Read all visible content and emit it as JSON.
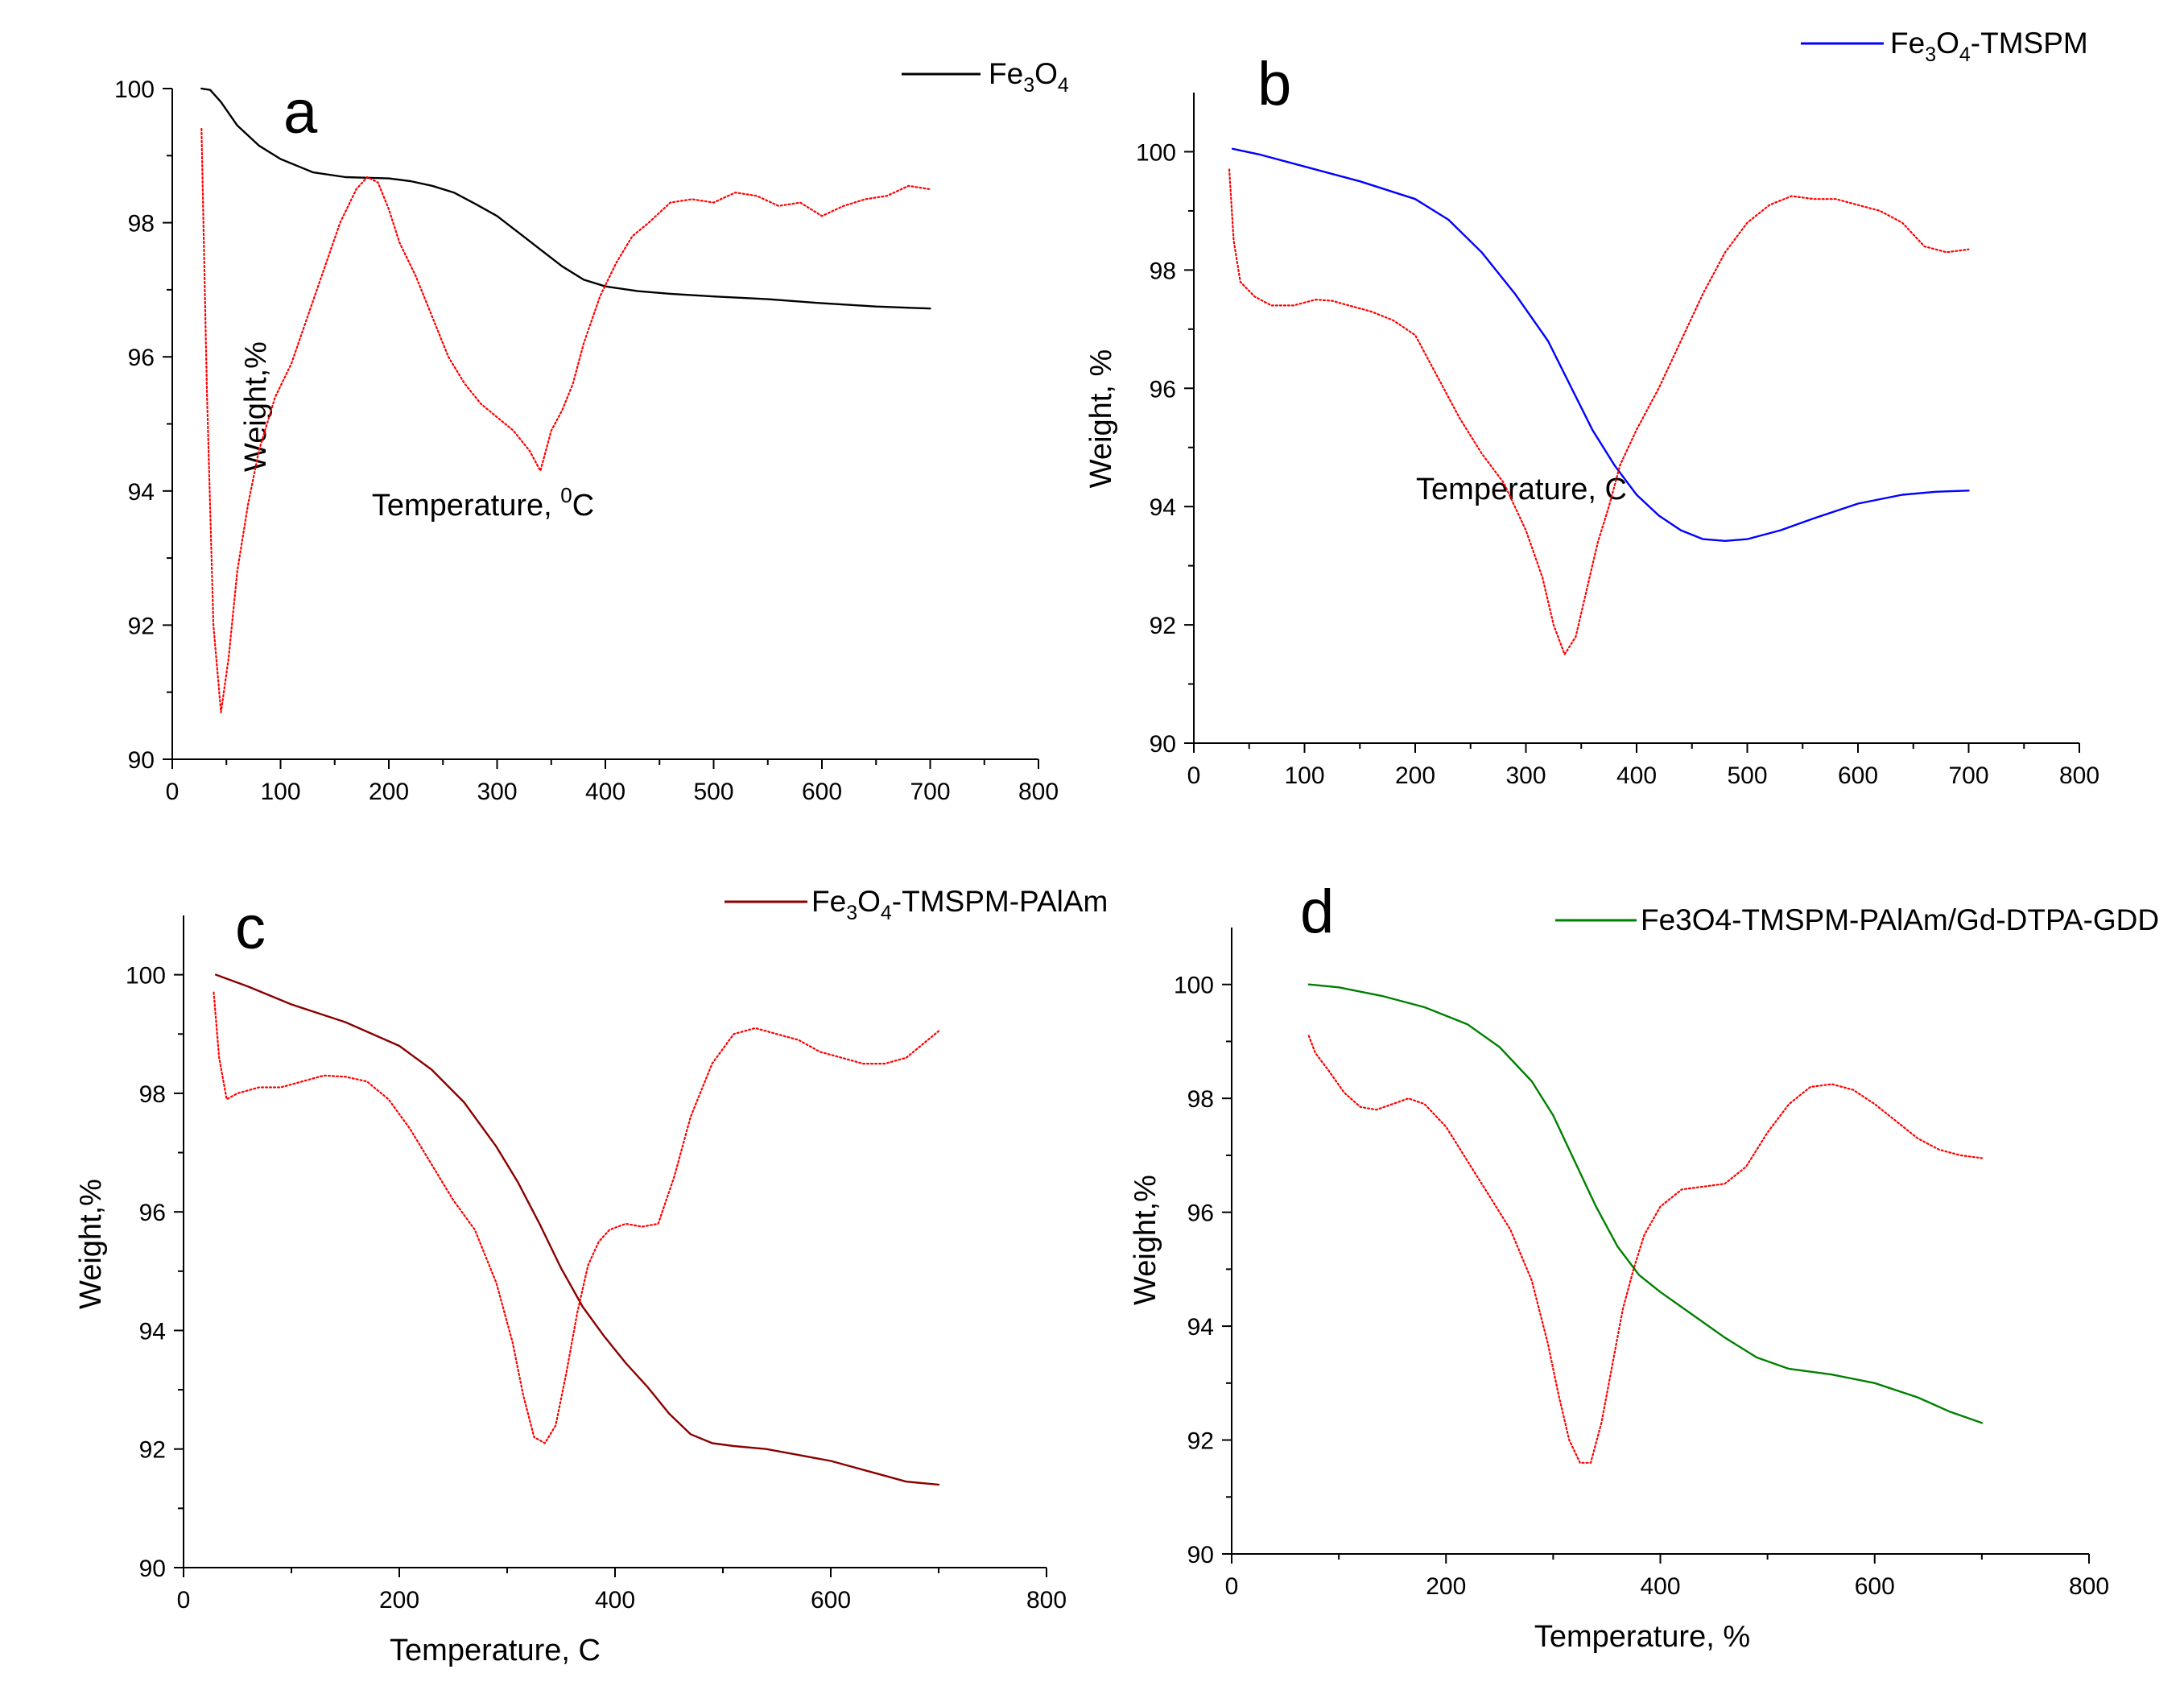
{
  "chart_data": [
    {
      "panel": "a",
      "type": "line",
      "xlabel_main": "Temperature, ",
      "xlabel_sup": "0",
      "xlabel_tail": "C",
      "ylabel": "Weight,%",
      "xlim": [
        0,
        800
      ],
      "ylim": [
        90,
        100
      ],
      "xticks": [
        0,
        100,
        200,
        300,
        400,
        500,
        600,
        700,
        800
      ],
      "yticks": [
        90,
        92,
        94,
        96,
        98,
        100
      ],
      "legend": {
        "parts": [
          [
            "Fe",
            ""
          ],
          [
            "3",
            "sub"
          ],
          [
            "O",
            ""
          ],
          [
            "4",
            "sub"
          ]
        ],
        "color": "#000000"
      },
      "series": [
        {
          "role": "weight",
          "color": "#000000",
          "style": "solid",
          "x": [
            27,
            35,
            45,
            60,
            80,
            100,
            130,
            160,
            180,
            200,
            220,
            240,
            260,
            280,
            300,
            320,
            340,
            360,
            380,
            400,
            430,
            460,
            500,
            550,
            600,
            650,
            700
          ],
          "y": [
            100.0,
            99.98,
            99.8,
            99.45,
            99.15,
            98.95,
            98.75,
            98.68,
            98.67,
            98.66,
            98.62,
            98.55,
            98.45,
            98.28,
            98.1,
            97.85,
            97.6,
            97.35,
            97.15,
            97.05,
            96.98,
            96.94,
            96.9,
            96.86,
            96.8,
            96.75,
            96.72
          ]
        },
        {
          "role": "derivative",
          "color": "#ff0000",
          "style": "dotted",
          "x": [
            27,
            32,
            38,
            45,
            52,
            60,
            70,
            80,
            95,
            110,
            125,
            140,
            155,
            170,
            180,
            190,
            200,
            210,
            225,
            240,
            255,
            270,
            285,
            300,
            315,
            330,
            340,
            350,
            360,
            370,
            380,
            395,
            410,
            425,
            440,
            460,
            480,
            500,
            520,
            540,
            560,
            580,
            600,
            620,
            640,
            660,
            680,
            700
          ],
          "y": [
            99.4,
            95.5,
            92.0,
            90.7,
            91.5,
            92.8,
            93.8,
            94.6,
            95.4,
            95.9,
            96.6,
            97.3,
            98.0,
            98.5,
            98.68,
            98.6,
            98.2,
            97.7,
            97.2,
            96.6,
            96.0,
            95.6,
            95.3,
            95.1,
            94.9,
            94.6,
            94.3,
            94.9,
            95.2,
            95.6,
            96.2,
            96.9,
            97.4,
            97.8,
            98.0,
            98.3,
            98.35,
            98.3,
            98.45,
            98.4,
            98.25,
            98.3,
            98.1,
            98.25,
            98.35,
            98.4,
            98.55,
            98.5
          ]
        }
      ]
    },
    {
      "panel": "b",
      "type": "line",
      "xlabel_main": "Temperature, C",
      "ylabel": "Weight, %",
      "xlim": [
        0,
        800
      ],
      "ylim": [
        90,
        101
      ],
      "xticks": [
        0,
        100,
        200,
        300,
        400,
        500,
        600,
        700,
        800
      ],
      "yticks": [
        90,
        92,
        94,
        96,
        98,
        100
      ],
      "legend": {
        "parts": [
          [
            "Fe",
            ""
          ],
          [
            "3",
            "sub"
          ],
          [
            "O",
            ""
          ],
          [
            "4",
            "sub"
          ],
          [
            "-TMSPM",
            ""
          ]
        ],
        "color": "#0000ff"
      },
      "series": [
        {
          "role": "weight",
          "color": "#0000ff",
          "style": "solid",
          "x": [
            35,
            60,
            100,
            150,
            200,
            230,
            260,
            290,
            320,
            340,
            360,
            380,
            400,
            420,
            440,
            460,
            480,
            500,
            530,
            560,
            600,
            640,
            670,
            700
          ],
          "y": [
            100.05,
            99.95,
            99.75,
            99.5,
            99.2,
            98.85,
            98.3,
            97.6,
            96.8,
            96.05,
            95.3,
            94.7,
            94.2,
            93.85,
            93.6,
            93.45,
            93.42,
            93.45,
            93.6,
            93.8,
            94.05,
            94.2,
            94.25,
            94.27
          ]
        },
        {
          "role": "derivative",
          "color": "#ff0000",
          "style": "dotted",
          "x": [
            32,
            36,
            42,
            55,
            70,
            90,
            110,
            125,
            140,
            160,
            180,
            200,
            220,
            240,
            260,
            280,
            300,
            315,
            325,
            335,
            345,
            355,
            365,
            375,
            385,
            400,
            420,
            440,
            460,
            480,
            500,
            520,
            540,
            560,
            580,
            600,
            620,
            640,
            660,
            680,
            700
          ],
          "y": [
            99.7,
            98.5,
            97.8,
            97.55,
            97.4,
            97.4,
            97.5,
            97.48,
            97.4,
            97.3,
            97.15,
            96.9,
            96.2,
            95.5,
            94.9,
            94.4,
            93.6,
            92.8,
            92.0,
            91.5,
            91.8,
            92.6,
            93.4,
            94.0,
            94.7,
            95.3,
            96.0,
            96.8,
            97.6,
            98.3,
            98.8,
            99.1,
            99.25,
            99.2,
            99.2,
            99.1,
            99.0,
            98.8,
            98.4,
            98.3,
            98.35
          ]
        }
      ]
    },
    {
      "panel": "c",
      "type": "line",
      "xlabel_main": "Temperature, C",
      "ylabel": "Weight,%",
      "xlim": [
        0,
        800
      ],
      "ylim": [
        90,
        101
      ],
      "xticks": [
        0,
        200,
        400,
        600,
        800
      ],
      "yticks": [
        90,
        92,
        94,
        96,
        98,
        100
      ],
      "legend": {
        "parts": [
          [
            "Fe",
            ""
          ],
          [
            "3",
            "sub"
          ],
          [
            "O",
            ""
          ],
          [
            "4",
            "sub"
          ],
          [
            "-TMSPM-PAlAm",
            ""
          ]
        ],
        "color": "#8b0000"
      },
      "series": [
        {
          "role": "weight",
          "color": "#8b0000",
          "style": "solid",
          "x": [
            30,
            60,
            100,
            150,
            200,
            230,
            260,
            290,
            310,
            330,
            350,
            370,
            390,
            410,
            430,
            450,
            470,
            490,
            510,
            540,
            570,
            600,
            640,
            670,
            700
          ],
          "y": [
            100.0,
            99.8,
            99.5,
            99.2,
            98.8,
            98.4,
            97.85,
            97.1,
            96.5,
            95.8,
            95.05,
            94.4,
            93.9,
            93.45,
            93.05,
            92.6,
            92.25,
            92.1,
            92.05,
            92.0,
            91.9,
            91.8,
            91.6,
            91.45,
            91.4
          ]
        },
        {
          "role": "derivative",
          "color": "#ff0000",
          "style": "dotted",
          "x": [
            28,
            33,
            40,
            50,
            70,
            90,
            110,
            130,
            150,
            170,
            190,
            210,
            230,
            250,
            270,
            290,
            305,
            315,
            325,
            335,
            345,
            355,
            365,
            375,
            385,
            395,
            410,
            425,
            440,
            455,
            470,
            490,
            510,
            530,
            550,
            570,
            590,
            610,
            630,
            650,
            670,
            700
          ],
          "y": [
            99.7,
            98.6,
            97.9,
            98.0,
            98.1,
            98.1,
            98.2,
            98.3,
            98.28,
            98.2,
            97.9,
            97.4,
            96.8,
            96.2,
            95.7,
            94.8,
            93.8,
            92.9,
            92.2,
            92.1,
            92.4,
            93.3,
            94.3,
            95.1,
            95.5,
            95.7,
            95.8,
            95.75,
            95.8,
            96.6,
            97.6,
            98.5,
            99.0,
            99.1,
            99.0,
            98.9,
            98.7,
            98.6,
            98.5,
            98.5,
            98.6,
            99.05
          ]
        }
      ]
    },
    {
      "panel": "d",
      "type": "line",
      "xlabel_main": "Temperature, %",
      "ylabel": "Weight,%",
      "xlim": [
        0,
        800
      ],
      "ylim": [
        90,
        101
      ],
      "xticks": [
        0,
        200,
        400,
        600,
        800
      ],
      "yticks": [
        90,
        92,
        94,
        96,
        98,
        100
      ],
      "legend": {
        "parts": [
          [
            "Fe3O4-TMSPM-PAlAm/Gd-DTPA-GDD",
            ""
          ]
        ],
        "color": "#008000"
      },
      "series": [
        {
          "role": "weight",
          "color": "#008000",
          "style": "solid",
          "x": [
            72,
            100,
            140,
            180,
            220,
            250,
            280,
            300,
            320,
            340,
            360,
            380,
            400,
            430,
            460,
            490,
            520,
            560,
            600,
            640,
            670,
            700
          ],
          "y": [
            100.0,
            99.95,
            99.8,
            99.6,
            99.3,
            98.9,
            98.3,
            97.7,
            96.9,
            96.1,
            95.4,
            94.9,
            94.6,
            94.2,
            93.8,
            93.45,
            93.25,
            93.15,
            93.0,
            92.75,
            92.5,
            92.3
          ]
        },
        {
          "role": "derivative",
          "color": "#ff0000",
          "style": "dotted",
          "x": [
            72,
            78,
            90,
            105,
            120,
            135,
            150,
            165,
            180,
            200,
            220,
            240,
            260,
            280,
            295,
            305,
            315,
            325,
            335,
            345,
            355,
            365,
            375,
            385,
            400,
            420,
            440,
            460,
            480,
            500,
            520,
            540,
            560,
            580,
            600,
            620,
            640,
            660,
            680,
            700
          ],
          "y": [
            99.1,
            98.8,
            98.5,
            98.1,
            97.85,
            97.8,
            97.9,
            98.0,
            97.9,
            97.5,
            96.9,
            96.3,
            95.7,
            94.8,
            93.7,
            92.8,
            92.0,
            91.6,
            91.6,
            92.3,
            93.3,
            94.3,
            95.0,
            95.6,
            96.1,
            96.4,
            96.45,
            96.5,
            96.8,
            97.4,
            97.9,
            98.2,
            98.25,
            98.15,
            97.9,
            97.6,
            97.3,
            97.1,
            97.0,
            96.95
          ]
        }
      ]
    }
  ]
}
